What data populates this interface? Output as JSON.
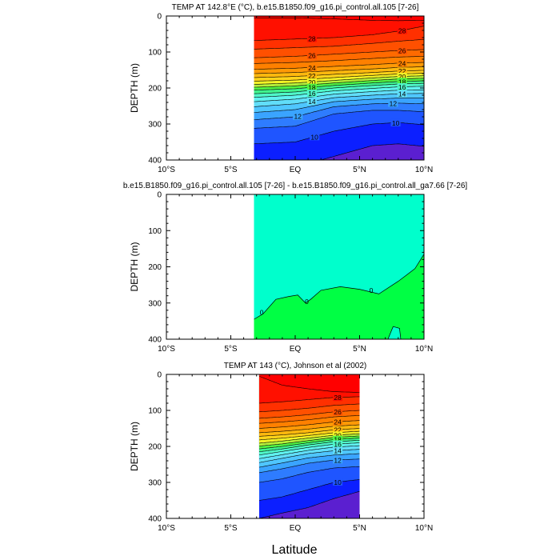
{
  "figure": {
    "xlabel": "Latitude"
  },
  "chart_data": [
    {
      "type": "contour",
      "title": "TEMP AT 142.8°E (°C), b.e15.B1850.f09_g16.pi_control.all.105 [7-26]",
      "ylabel": "DEPTH (m)",
      "xlabel": "",
      "xlim": [
        -10,
        10
      ],
      "ylim": [
        400,
        0
      ],
      "y_inverted": true,
      "xticks": [
        "10°S",
        "5°S",
        "EQ",
        "5°N",
        "10°N"
      ],
      "yticks": [
        "0",
        "100",
        "200",
        "300",
        "400"
      ],
      "data_xrange": [
        -3.2,
        10
      ],
      "contour_levels": [
        9,
        10,
        11,
        12,
        13,
        14,
        15,
        16,
        17,
        18,
        19,
        20,
        21,
        22,
        23,
        24,
        25,
        26,
        27,
        28,
        29
      ],
      "contour_labels": [
        "28",
        "26",
        "24",
        "22",
        "20",
        "18",
        "16",
        "14",
        "12",
        "10"
      ],
      "isotherm_depths": [
        {
          "level": 29,
          "lat": [
            -3.2,
            0,
            3,
            6,
            8,
            10
          ],
          "depth": [
            5,
            5,
            8,
            12,
            13,
            12
          ]
        },
        {
          "level": 28,
          "lat": [
            -3.2,
            0,
            3,
            6,
            8,
            10
          ],
          "depth": [
            68,
            64,
            60,
            52,
            42,
            28
          ]
        },
        {
          "level": 27,
          "lat": [
            -3.2,
            0,
            3,
            6,
            8,
            10
          ],
          "depth": [
            92,
            88,
            84,
            76,
            70,
            65
          ]
        },
        {
          "level": 26,
          "lat": [
            -3.2,
            0,
            3,
            6,
            8,
            10
          ],
          "depth": [
            116,
            112,
            106,
            100,
            96,
            93
          ]
        },
        {
          "level": 25,
          "lat": [
            -3.2,
            0,
            3,
            6,
            8,
            10
          ],
          "depth": [
            132,
            129,
            124,
            118,
            114,
            112
          ]
        },
        {
          "level": 24,
          "lat": [
            -3.2,
            0,
            3,
            6,
            8,
            10
          ],
          "depth": [
            148,
            145,
            140,
            135,
            131,
            129
          ]
        },
        {
          "level": 23,
          "lat": [
            -3.2,
            0,
            3,
            6,
            8,
            10
          ],
          "depth": [
            160,
            157,
            152,
            147,
            143,
            141
          ]
        },
        {
          "level": 22,
          "lat": [
            -3.2,
            0,
            3,
            6,
            8,
            10
          ],
          "depth": [
            171,
            168,
            162,
            157,
            153,
            151
          ]
        },
        {
          "level": 21,
          "lat": [
            -3.2,
            0,
            3,
            6,
            8,
            10
          ],
          "depth": [
            181,
            178,
            171,
            165,
            161,
            159
          ]
        },
        {
          "level": 20,
          "lat": [
            -3.2,
            0,
            3,
            6,
            8,
            10
          ],
          "depth": [
            190,
            186,
            179,
            172,
            168,
            166
          ]
        },
        {
          "level": 19,
          "lat": [
            -3.2,
            0,
            3,
            6,
            8,
            10
          ],
          "depth": [
            198,
            194,
            186,
            179,
            175,
            173
          ]
        },
        {
          "level": 18,
          "lat": [
            -3.2,
            0,
            3,
            6,
            8,
            10
          ],
          "depth": [
            206,
            202,
            193,
            186,
            182,
            180
          ]
        },
        {
          "level": 17,
          "lat": [
            -3.2,
            0,
            3,
            6,
            8,
            10
          ],
          "depth": [
            216,
            211,
            200,
            193,
            189,
            187
          ]
        },
        {
          "level": 16,
          "lat": [
            -3.2,
            0,
            3,
            6,
            8,
            10
          ],
          "depth": [
            226,
            220,
            208,
            201,
            197,
            195
          ]
        },
        {
          "level": 15,
          "lat": [
            -3.2,
            0,
            3,
            6,
            8,
            10
          ],
          "depth": [
            238,
            231,
            217,
            210,
            206,
            205
          ]
        },
        {
          "level": 14,
          "lat": [
            -3.2,
            0,
            3,
            6,
            8,
            10
          ],
          "depth": [
            252,
            244,
            227,
            220,
            216,
            215
          ]
        },
        {
          "level": 13,
          "lat": [
            -3.2,
            0,
            3,
            6,
            8,
            10
          ],
          "depth": [
            268,
            260,
            238,
            231,
            228,
            228
          ]
        },
        {
          "level": 12,
          "lat": [
            -3.2,
            0,
            3,
            6,
            8,
            10
          ],
          "depth": [
            288,
            280,
            252,
            244,
            242,
            244
          ]
        },
        {
          "level": 11,
          "lat": [
            -3.2,
            0,
            3,
            6,
            8,
            10
          ],
          "depth": [
            312,
            306,
            272,
            262,
            262,
            266
          ]
        },
        {
          "level": 10,
          "lat": [
            -3.2,
            0,
            3,
            6,
            8,
            10
          ],
          "depth": [
            355,
            350,
            320,
            300,
            296,
            302
          ]
        },
        {
          "level": 9,
          "lat": [
            -3.2,
            2,
            4,
            6,
            8,
            10
          ],
          "depth": [
            400,
            400,
            380,
            360,
            355,
            362
          ]
        }
      ]
    },
    {
      "type": "contour",
      "title": "b.e15.B1850.f09_g16.pi_control.all.105 [7-26] - b.e15.B1850.f09_g16.pi_control.all_ga7.66 [7-26]",
      "ylabel": "DEPTH (m)",
      "xlabel": "",
      "xlim": [
        -10,
        10
      ],
      "ylim": [
        400,
        0
      ],
      "y_inverted": true,
      "xticks": [
        "10°S",
        "5°S",
        "EQ",
        "5°N",
        "10°N"
      ],
      "yticks": [
        "0",
        "100",
        "200",
        "300",
        "400"
      ],
      "data_xrange": [
        -3.2,
        10
      ],
      "contour_levels": [
        0
      ],
      "contour_labels": [
        "0",
        "0",
        "0"
      ],
      "zero_contour": {
        "lat": [
          -3.2,
          -2.5,
          -1.5,
          -0.5,
          0.2,
          0.8,
          1.2,
          2,
          3.5,
          5,
          6.5,
          8,
          9.3,
          10
        ],
        "depth": [
          345,
          330,
          290,
          282,
          278,
          300,
          290,
          265,
          255,
          262,
          275,
          240,
          205,
          165
        ]
      },
      "negative_patch": {
        "lat": [
          7.2,
          7.6,
          8.1,
          8.2
        ],
        "depth": [
          400,
          365,
          370,
          400
        ]
      }
    },
    {
      "type": "contour",
      "title": "TEMP AT 143 (°C), Johnson et al (2002)",
      "ylabel": "DEPTH (m)",
      "xlabel": "",
      "xlim": [
        -10,
        5
      ],
      "ylim": [
        400,
        0
      ],
      "y_inverted": true,
      "xticks": [
        "10°S",
        "5°S",
        "EQ",
        "5°N",
        "10°N"
      ],
      "yticks": [
        "0",
        "100",
        "200",
        "300",
        "400"
      ],
      "data_xrange": [
        -2.8,
        5
      ],
      "contour_levels": [
        9,
        10,
        11,
        12,
        13,
        14,
        15,
        16,
        17,
        18,
        19,
        20,
        21,
        22,
        23,
        24,
        25,
        26,
        27,
        28,
        29
      ],
      "contour_labels": [
        "28",
        "26",
        "24",
        "22",
        "20",
        "18",
        "16",
        "14",
        "12",
        "10"
      ],
      "isotherm_depths": [
        {
          "level": 29,
          "lat": [
            -2.8,
            -1,
            1,
            3,
            5
          ],
          "depth": [
            5,
            30,
            40,
            48,
            50
          ]
        },
        {
          "level": 28,
          "lat": [
            -2.8,
            -1,
            1,
            3,
            5
          ],
          "depth": [
            80,
            76,
            70,
            64,
            62
          ]
        },
        {
          "level": 27,
          "lat": [
            -2.8,
            -1,
            1,
            3,
            5
          ],
          "depth": [
            104,
            100,
            94,
            86,
            82
          ]
        },
        {
          "level": 26,
          "lat": [
            -2.8,
            -1,
            1,
            3,
            5
          ],
          "depth": [
            122,
            118,
            112,
            104,
            100
          ]
        },
        {
          "level": 25,
          "lat": [
            -2.8,
            -1,
            1,
            3,
            5
          ],
          "depth": [
            136,
            132,
            126,
            118,
            114
          ]
        },
        {
          "level": 24,
          "lat": [
            -2.8,
            -1,
            1,
            3,
            5
          ],
          "depth": [
            150,
            146,
            140,
            132,
            128
          ]
        },
        {
          "level": 23,
          "lat": [
            -2.8,
            -1,
            1,
            3,
            5
          ],
          "depth": [
            162,
            158,
            152,
            144,
            140
          ]
        },
        {
          "level": 22,
          "lat": [
            -2.8,
            -1,
            1,
            3,
            5
          ],
          "depth": [
            172,
            168,
            162,
            154,
            150
          ]
        },
        {
          "level": 21,
          "lat": [
            -2.8,
            -1,
            1,
            3,
            5
          ],
          "depth": [
            182,
            177,
            170,
            162,
            158
          ]
        },
        {
          "level": 20,
          "lat": [
            -2.8,
            -1,
            1,
            3,
            5
          ],
          "depth": [
            191,
            185,
            177,
            169,
            165
          ]
        },
        {
          "level": 19,
          "lat": [
            -2.8,
            -1,
            1,
            3,
            5
          ],
          "depth": [
            199,
            193,
            184,
            175,
            171
          ]
        },
        {
          "level": 18,
          "lat": [
            -2.8,
            -1,
            1,
            3,
            5
          ],
          "depth": [
            207,
            200,
            190,
            181,
            177
          ]
        },
        {
          "level": 17,
          "lat": [
            -2.8,
            -1,
            1,
            3,
            5
          ],
          "depth": [
            215,
            207,
            196,
            187,
            183
          ]
        },
        {
          "level": 16,
          "lat": [
            -2.8,
            -1,
            1,
            3,
            5
          ],
          "depth": [
            224,
            214,
            203,
            194,
            190
          ]
        },
        {
          "level": 15,
          "lat": [
            -2.8,
            -1,
            1,
            3,
            5
          ],
          "depth": [
            234,
            223,
            211,
            202,
            198
          ]
        },
        {
          "level": 14,
          "lat": [
            -2.8,
            -1,
            1,
            3,
            5
          ],
          "depth": [
            245,
            233,
            220,
            212,
            208
          ]
        },
        {
          "level": 13,
          "lat": [
            -2.8,
            -1,
            1,
            3,
            5
          ],
          "depth": [
            258,
            246,
            232,
            224,
            220
          ]
        },
        {
          "level": 12,
          "lat": [
            -2.8,
            -1,
            1,
            3,
            5
          ],
          "depth": [
            273,
            262,
            247,
            238,
            235
          ]
        },
        {
          "level": 11,
          "lat": [
            -2.8,
            -1,
            1,
            3,
            5
          ],
          "depth": [
            300,
            290,
            272,
            260,
            256
          ]
        },
        {
          "level": 10,
          "lat": [
            -2.8,
            -1,
            1,
            3,
            5
          ],
          "depth": [
            350,
            340,
            320,
            300,
            292
          ]
        },
        {
          "level": 9,
          "lat": [
            -2.8,
            -1,
            1,
            3,
            5
          ],
          "depth": [
            400,
            385,
            370,
            345,
            325
          ]
        }
      ]
    }
  ]
}
